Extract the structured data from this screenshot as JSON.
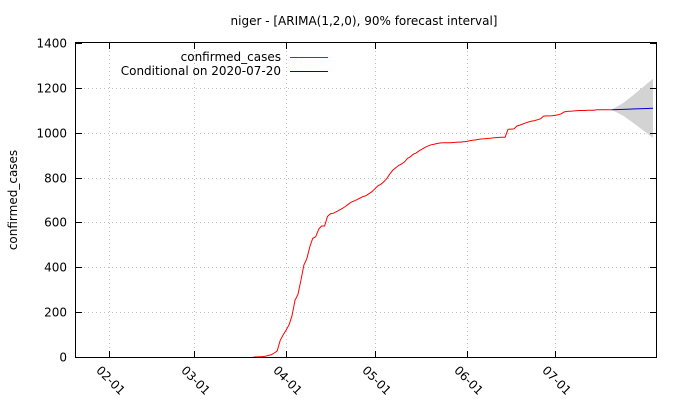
{
  "chart_data": {
    "type": "line",
    "title": "niger -  [ARIMA(1,2,0), 90% forecast interval]",
    "xlabel": "",
    "ylabel": "confirmed_cases",
    "ylim": [
      0,
      1400
    ],
    "y_ticks": [
      0,
      200,
      400,
      600,
      800,
      1000,
      1200,
      1400
    ],
    "x_ticks": [
      {
        "label": "02-01",
        "day": 32
      },
      {
        "label": "03-01",
        "day": 61
      },
      {
        "label": "04-01",
        "day": 92
      },
      {
        "label": "05-01",
        "day": 122
      },
      {
        "label": "06-01",
        "day": 153
      },
      {
        "label": "07-01",
        "day": 183
      }
    ],
    "xlim_days": [
      21,
      217
    ],
    "grid": true,
    "legend_position": "top-left",
    "series": [
      {
        "name": "confirmed_cases",
        "color": "#ff0000",
        "points": [
          [
            81,
            0
          ],
          [
            84,
            2
          ],
          [
            85,
            3
          ],
          [
            86,
            7
          ],
          [
            87,
            10
          ],
          [
            88,
            18
          ],
          [
            89,
            27
          ],
          [
            90,
            74
          ],
          [
            91,
            98
          ],
          [
            92,
            120
          ],
          [
            93,
            144
          ],
          [
            94,
            184
          ],
          [
            95,
            253
          ],
          [
            96,
            278
          ],
          [
            97,
            342
          ],
          [
            98,
            410
          ],
          [
            99,
            438
          ],
          [
            100,
            491
          ],
          [
            101,
            529
          ],
          [
            102,
            536
          ],
          [
            103,
            570
          ],
          [
            104,
            584
          ],
          [
            105,
            584
          ],
          [
            106,
            627
          ],
          [
            107,
            639
          ],
          [
            108,
            641
          ],
          [
            109,
            648
          ],
          [
            110,
            655
          ],
          [
            111,
            662
          ],
          [
            112,
            671
          ],
          [
            113,
            681
          ],
          [
            114,
            690
          ],
          [
            115,
            696
          ],
          [
            116,
            702
          ],
          [
            117,
            709
          ],
          [
            118,
            715
          ],
          [
            119,
            719
          ],
          [
            120,
            728
          ],
          [
            121,
            737
          ],
          [
            122,
            750
          ],
          [
            123,
            763
          ],
          [
            124,
            770
          ],
          [
            125,
            781
          ],
          [
            126,
            795
          ],
          [
            127,
            815
          ],
          [
            128,
            832
          ],
          [
            129,
            843
          ],
          [
            130,
            854
          ],
          [
            131,
            861
          ],
          [
            132,
            870
          ],
          [
            133,
            885
          ],
          [
            134,
            893
          ],
          [
            135,
            904
          ],
          [
            136,
            910
          ],
          [
            137,
            920
          ],
          [
            138,
            927
          ],
          [
            139,
            935
          ],
          [
            140,
            941
          ],
          [
            141,
            946
          ],
          [
            142,
            949
          ],
          [
            143,
            952
          ],
          [
            144,
            954
          ],
          [
            145,
            955
          ],
          [
            146,
            955
          ],
          [
            147,
            955
          ],
          [
            148,
            956
          ],
          [
            149,
            957
          ],
          [
            150,
            958
          ],
          [
            151,
            958
          ],
          [
            152,
            960
          ],
          [
            153,
            961
          ],
          [
            154,
            964
          ],
          [
            155,
            966
          ],
          [
            156,
            968
          ],
          [
            157,
            970
          ],
          [
            158,
            972
          ],
          [
            159,
            973
          ],
          [
            160,
            974
          ],
          [
            161,
            975
          ],
          [
            162,
            977
          ],
          [
            163,
            978
          ],
          [
            164,
            979
          ],
          [
            165,
            980
          ],
          [
            166,
            980
          ],
          [
            167,
            1015
          ],
          [
            168,
            1016
          ],
          [
            169,
            1017
          ],
          [
            170,
            1030
          ],
          [
            171,
            1034
          ],
          [
            172,
            1039
          ],
          [
            173,
            1044
          ],
          [
            174,
            1048
          ],
          [
            175,
            1052
          ],
          [
            176,
            1054
          ],
          [
            177,
            1058
          ],
          [
            178,
            1062
          ],
          [
            179,
            1074
          ],
          [
            180,
            1075
          ],
          [
            181,
            1075
          ],
          [
            182,
            1076
          ],
          [
            183,
            1078
          ],
          [
            184,
            1080
          ],
          [
            185,
            1085
          ],
          [
            186,
            1093
          ],
          [
            187,
            1095
          ],
          [
            188,
            1096
          ],
          [
            189,
            1097
          ],
          [
            190,
            1098
          ],
          [
            191,
            1099
          ],
          [
            192,
            1099
          ],
          [
            193,
            1099
          ],
          [
            194,
            1100
          ],
          [
            195,
            1100
          ],
          [
            196,
            1100
          ],
          [
            197,
            1102
          ],
          [
            198,
            1102
          ],
          [
            199,
            1102
          ],
          [
            200,
            1102
          ],
          [
            201,
            1102
          ],
          [
            202,
            1102
          ]
        ]
      },
      {
        "name": "Conditional on 2020-07-20",
        "color": "#0000cc",
        "points": [
          [
            202,
            1102
          ],
          [
            206,
            1104
          ],
          [
            210,
            1106
          ],
          [
            214,
            1108
          ],
          [
            216,
            1109
          ]
        ]
      }
    ],
    "forecast_interval": {
      "level": "90%",
      "color": "#d3d3d3",
      "upper": [
        [
          202,
          1102
        ],
        [
          206,
          1133
        ],
        [
          210,
          1175
        ],
        [
          214,
          1219
        ],
        [
          216,
          1241
        ]
      ],
      "lower": [
        [
          202,
          1102
        ],
        [
          206,
          1075
        ],
        [
          210,
          1037
        ],
        [
          214,
          997
        ],
        [
          216,
          977
        ]
      ]
    }
  }
}
